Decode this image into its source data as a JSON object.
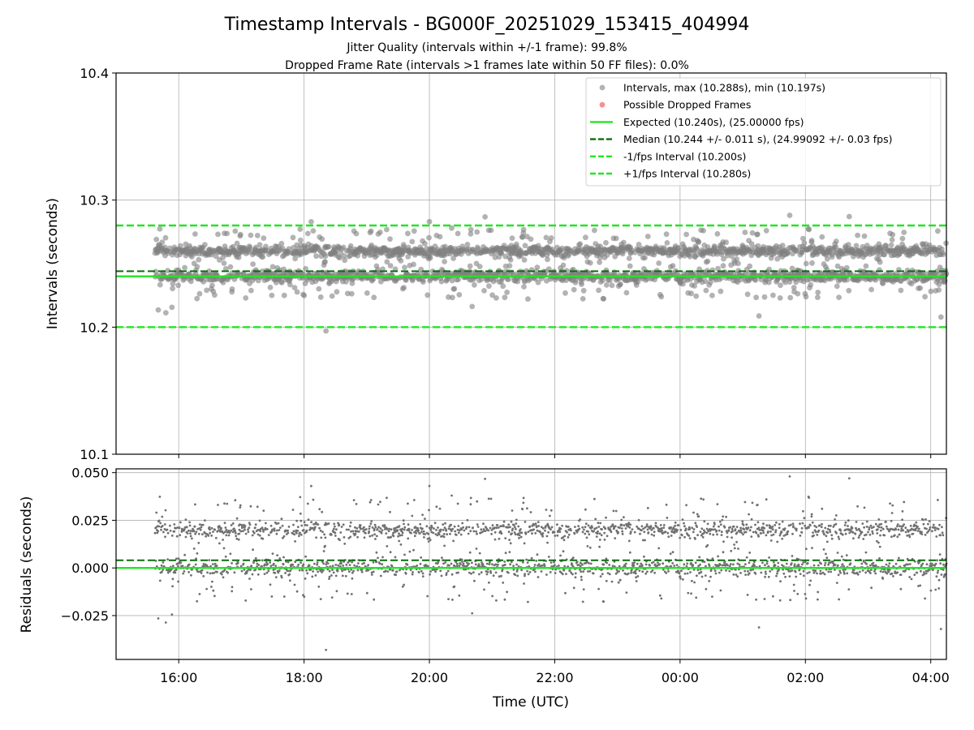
{
  "chart_data": [
    {
      "type": "scatter",
      "title": "Timestamp Intervals - BG000F_20251029_153415_404994",
      "subtitle_lines": [
        "Jitter Quality (intervals within +/-1 frame): 99.8%",
        "Dropped Frame Rate (intervals >1 frames late within 50 FF files): 0.0%"
      ],
      "xlabel": "",
      "ylabel": "Intervals (seconds)",
      "x_range_hours": [
        15.0,
        28.25
      ],
      "ylim": [
        10.1,
        10.4
      ],
      "y_ticks": [
        "10.1",
        "10.2",
        "10.3",
        "10.4"
      ],
      "x_ticks": [
        "16:00",
        "18:00",
        "20:00",
        "22:00",
        "00:00",
        "02:00",
        "04:00"
      ],
      "x_tick_hours": [
        16,
        18,
        20,
        22,
        24,
        26,
        28
      ],
      "grid": true,
      "legend_position": "top-right",
      "legend": [
        {
          "label": "Intervals, max (10.288s), min (10.197s)",
          "kind": "marker",
          "color": "#999999"
        },
        {
          "label": "Possible Dropped Frames",
          "kind": "marker",
          "color": "#f06c6c"
        },
        {
          "label": "Expected (10.240s), (25.00000 fps)",
          "kind": "solid",
          "color": "#22e622"
        },
        {
          "label": "Median (10.244 +/- 0.011 s), (24.99092 +/- 0.03 fps)",
          "kind": "dashed",
          "color": "#0a6e0a"
        },
        {
          "label": "-1/fps Interval (10.200s)",
          "kind": "dashed",
          "color": "#22e622"
        },
        {
          "label": "+1/fps Interval (10.280s)",
          "kind": "dashed",
          "color": "#22e622"
        }
      ],
      "reference_lines": {
        "expected": 10.24,
        "median": 10.244,
        "minus_one_fps": 10.2,
        "plus_one_fps": 10.28
      },
      "series_summary": {
        "x_start_hour": 15.62,
        "x_end_hour": 28.25,
        "max": 10.288,
        "min": 10.197,
        "clusters": [
          10.24,
          10.26
        ]
      }
    },
    {
      "type": "scatter",
      "xlabel": "Time (UTC)",
      "ylabel": "Residuals (seconds)",
      "x_range_hours": [
        15.0,
        28.25
      ],
      "ylim": [
        -0.048,
        0.052
      ],
      "y_ticks": [
        "−0.025",
        "0.000",
        "0.025",
        "0.050"
      ],
      "y_tick_values": [
        -0.025,
        0.0,
        0.025,
        0.05
      ],
      "x_ticks": [
        "16:00",
        "18:00",
        "20:00",
        "22:00",
        "00:00",
        "02:00",
        "04:00"
      ],
      "x_tick_hours": [
        16,
        18,
        20,
        22,
        24,
        26,
        28
      ],
      "grid": true,
      "reference_lines": {
        "zero": 0.0,
        "median_offset": 0.004
      },
      "series_summary": {
        "max": 0.048,
        "min": -0.043,
        "clusters": [
          0.0,
          0.02
        ]
      }
    }
  ]
}
